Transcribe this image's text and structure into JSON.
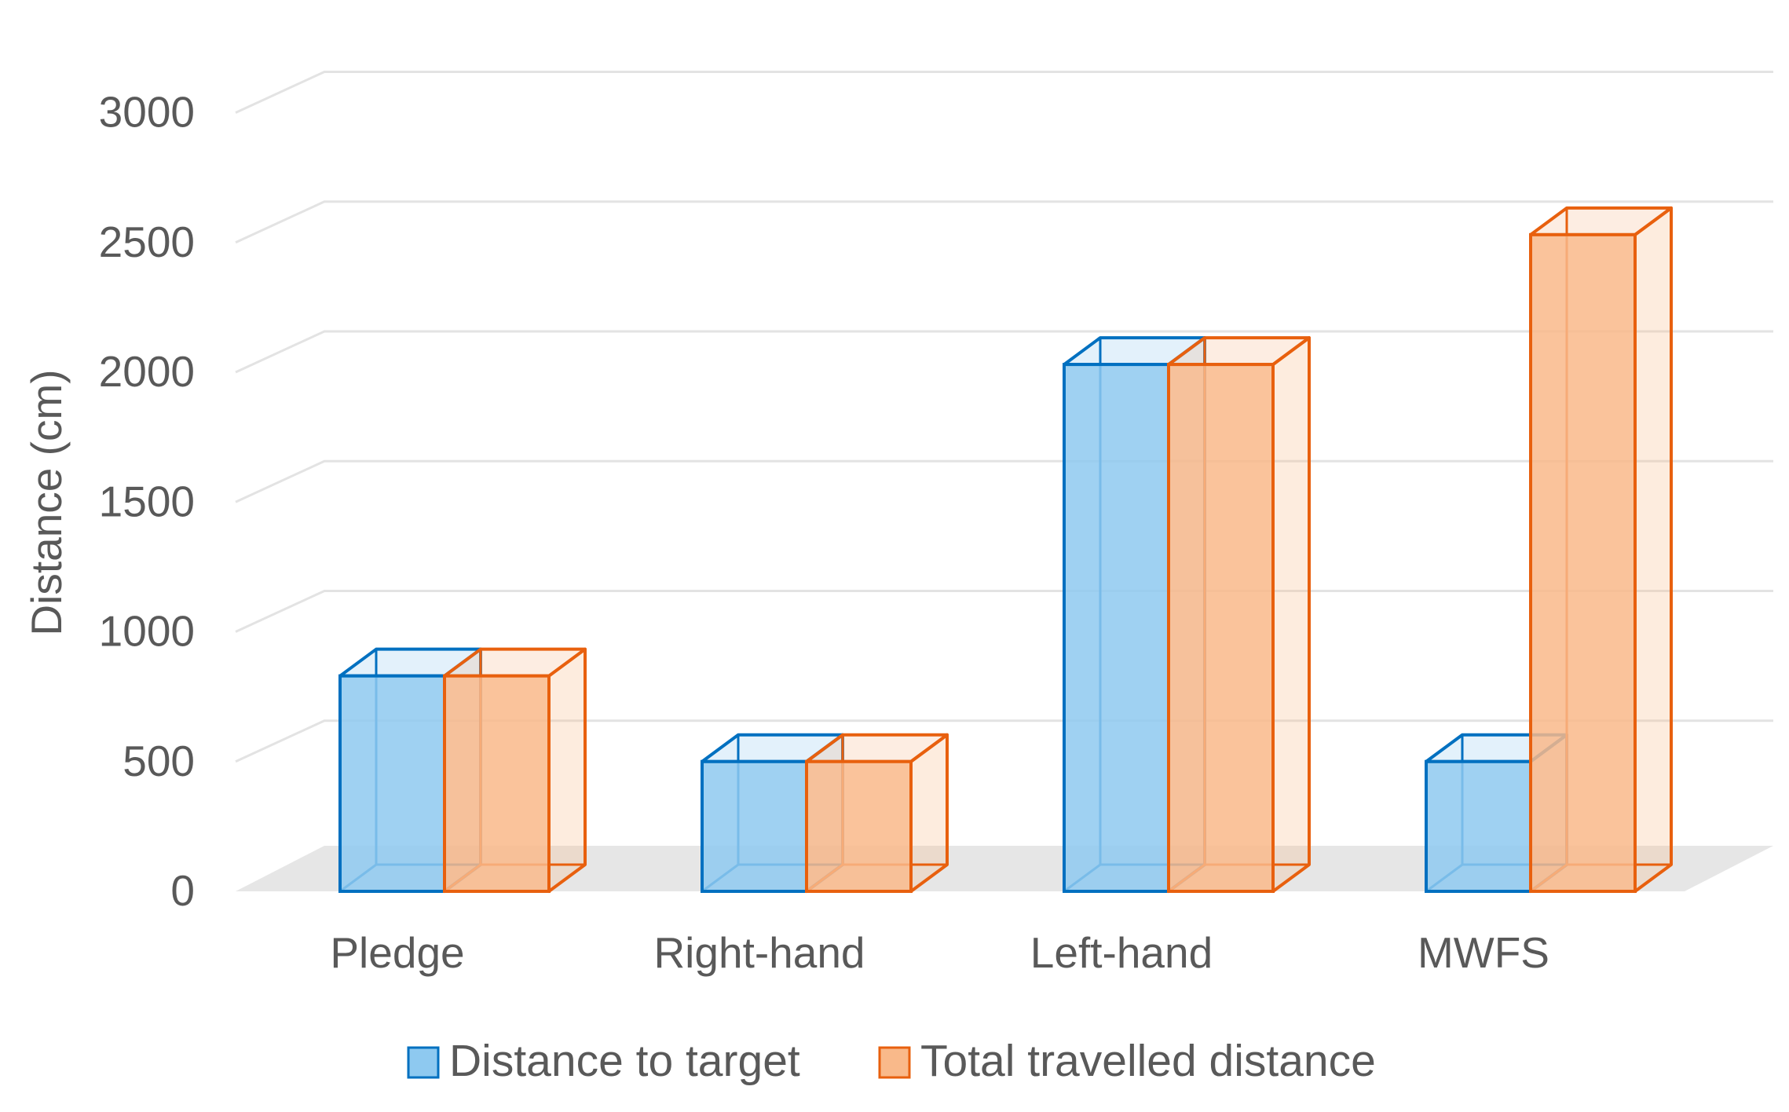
{
  "chart_data": {
    "type": "bar",
    "style": "3d-clustered-column",
    "title": "",
    "xlabel": "",
    "ylabel": "Distance (cm)",
    "ylim": [
      0,
      3000
    ],
    "yticks": [
      0,
      500,
      1000,
      1500,
      2000,
      2500,
      3000
    ],
    "grid": true,
    "legend_position": "bottom",
    "categories": [
      "Pledge",
      "Right-hand",
      "Left-hand",
      "MWFS"
    ],
    "series": [
      {
        "name": "Distance to target",
        "values": [
          830,
          500,
          2030,
          500
        ],
        "color": "#0070c0",
        "fill": "#8ec9f0"
      },
      {
        "name": "Total travelled distance",
        "values": [
          830,
          500,
          2030,
          2530
        ],
        "color": "#e8600e",
        "fill": "#f9b98a"
      }
    ]
  }
}
